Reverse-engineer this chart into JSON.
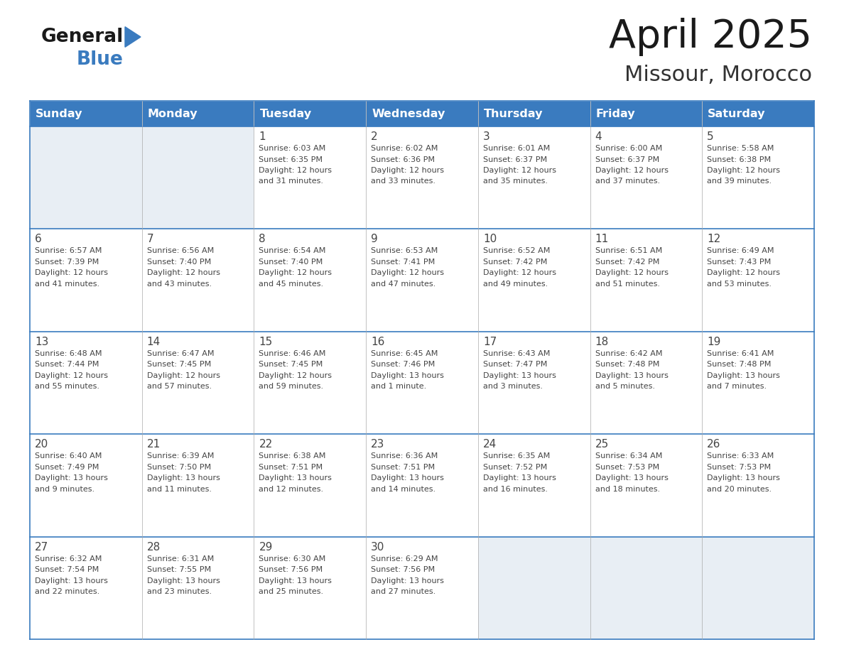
{
  "title": "April 2025",
  "subtitle": "Missour, Morocco",
  "header_bg": "#3a7bbf",
  "header_text_color": "#ffffff",
  "cell_bg_white": "#ffffff",
  "cell_bg_light": "#e8eef4",
  "border_color": "#3a7bbf",
  "text_color": "#444444",
  "days_of_week": [
    "Sunday",
    "Monday",
    "Tuesday",
    "Wednesday",
    "Thursday",
    "Friday",
    "Saturday"
  ],
  "weeks": [
    [
      {
        "day": "",
        "info": ""
      },
      {
        "day": "",
        "info": ""
      },
      {
        "day": "1",
        "info": "Sunrise: 6:03 AM\nSunset: 6:35 PM\nDaylight: 12 hours\nand 31 minutes."
      },
      {
        "day": "2",
        "info": "Sunrise: 6:02 AM\nSunset: 6:36 PM\nDaylight: 12 hours\nand 33 minutes."
      },
      {
        "day": "3",
        "info": "Sunrise: 6:01 AM\nSunset: 6:37 PM\nDaylight: 12 hours\nand 35 minutes."
      },
      {
        "day": "4",
        "info": "Sunrise: 6:00 AM\nSunset: 6:37 PM\nDaylight: 12 hours\nand 37 minutes."
      },
      {
        "day": "5",
        "info": "Sunrise: 5:58 AM\nSunset: 6:38 PM\nDaylight: 12 hours\nand 39 minutes."
      }
    ],
    [
      {
        "day": "6",
        "info": "Sunrise: 6:57 AM\nSunset: 7:39 PM\nDaylight: 12 hours\nand 41 minutes."
      },
      {
        "day": "7",
        "info": "Sunrise: 6:56 AM\nSunset: 7:40 PM\nDaylight: 12 hours\nand 43 minutes."
      },
      {
        "day": "8",
        "info": "Sunrise: 6:54 AM\nSunset: 7:40 PM\nDaylight: 12 hours\nand 45 minutes."
      },
      {
        "day": "9",
        "info": "Sunrise: 6:53 AM\nSunset: 7:41 PM\nDaylight: 12 hours\nand 47 minutes."
      },
      {
        "day": "10",
        "info": "Sunrise: 6:52 AM\nSunset: 7:42 PM\nDaylight: 12 hours\nand 49 minutes."
      },
      {
        "day": "11",
        "info": "Sunrise: 6:51 AM\nSunset: 7:42 PM\nDaylight: 12 hours\nand 51 minutes."
      },
      {
        "day": "12",
        "info": "Sunrise: 6:49 AM\nSunset: 7:43 PM\nDaylight: 12 hours\nand 53 minutes."
      }
    ],
    [
      {
        "day": "13",
        "info": "Sunrise: 6:48 AM\nSunset: 7:44 PM\nDaylight: 12 hours\nand 55 minutes."
      },
      {
        "day": "14",
        "info": "Sunrise: 6:47 AM\nSunset: 7:45 PM\nDaylight: 12 hours\nand 57 minutes."
      },
      {
        "day": "15",
        "info": "Sunrise: 6:46 AM\nSunset: 7:45 PM\nDaylight: 12 hours\nand 59 minutes."
      },
      {
        "day": "16",
        "info": "Sunrise: 6:45 AM\nSunset: 7:46 PM\nDaylight: 13 hours\nand 1 minute."
      },
      {
        "day": "17",
        "info": "Sunrise: 6:43 AM\nSunset: 7:47 PM\nDaylight: 13 hours\nand 3 minutes."
      },
      {
        "day": "18",
        "info": "Sunrise: 6:42 AM\nSunset: 7:48 PM\nDaylight: 13 hours\nand 5 minutes."
      },
      {
        "day": "19",
        "info": "Sunrise: 6:41 AM\nSunset: 7:48 PM\nDaylight: 13 hours\nand 7 minutes."
      }
    ],
    [
      {
        "day": "20",
        "info": "Sunrise: 6:40 AM\nSunset: 7:49 PM\nDaylight: 13 hours\nand 9 minutes."
      },
      {
        "day": "21",
        "info": "Sunrise: 6:39 AM\nSunset: 7:50 PM\nDaylight: 13 hours\nand 11 minutes."
      },
      {
        "day": "22",
        "info": "Sunrise: 6:38 AM\nSunset: 7:51 PM\nDaylight: 13 hours\nand 12 minutes."
      },
      {
        "day": "23",
        "info": "Sunrise: 6:36 AM\nSunset: 7:51 PM\nDaylight: 13 hours\nand 14 minutes."
      },
      {
        "day": "24",
        "info": "Sunrise: 6:35 AM\nSunset: 7:52 PM\nDaylight: 13 hours\nand 16 minutes."
      },
      {
        "day": "25",
        "info": "Sunrise: 6:34 AM\nSunset: 7:53 PM\nDaylight: 13 hours\nand 18 minutes."
      },
      {
        "day": "26",
        "info": "Sunrise: 6:33 AM\nSunset: 7:53 PM\nDaylight: 13 hours\nand 20 minutes."
      }
    ],
    [
      {
        "day": "27",
        "info": "Sunrise: 6:32 AM\nSunset: 7:54 PM\nDaylight: 13 hours\nand 22 minutes."
      },
      {
        "day": "28",
        "info": "Sunrise: 6:31 AM\nSunset: 7:55 PM\nDaylight: 13 hours\nand 23 minutes."
      },
      {
        "day": "29",
        "info": "Sunrise: 6:30 AM\nSunset: 7:56 PM\nDaylight: 13 hours\nand 25 minutes."
      },
      {
        "day": "30",
        "info": "Sunrise: 6:29 AM\nSunset: 7:56 PM\nDaylight: 13 hours\nand 27 minutes."
      },
      {
        "day": "",
        "info": ""
      },
      {
        "day": "",
        "info": ""
      },
      {
        "day": "",
        "info": ""
      }
    ]
  ],
  "figsize": [
    11.88,
    9.18
  ],
  "dpi": 100
}
